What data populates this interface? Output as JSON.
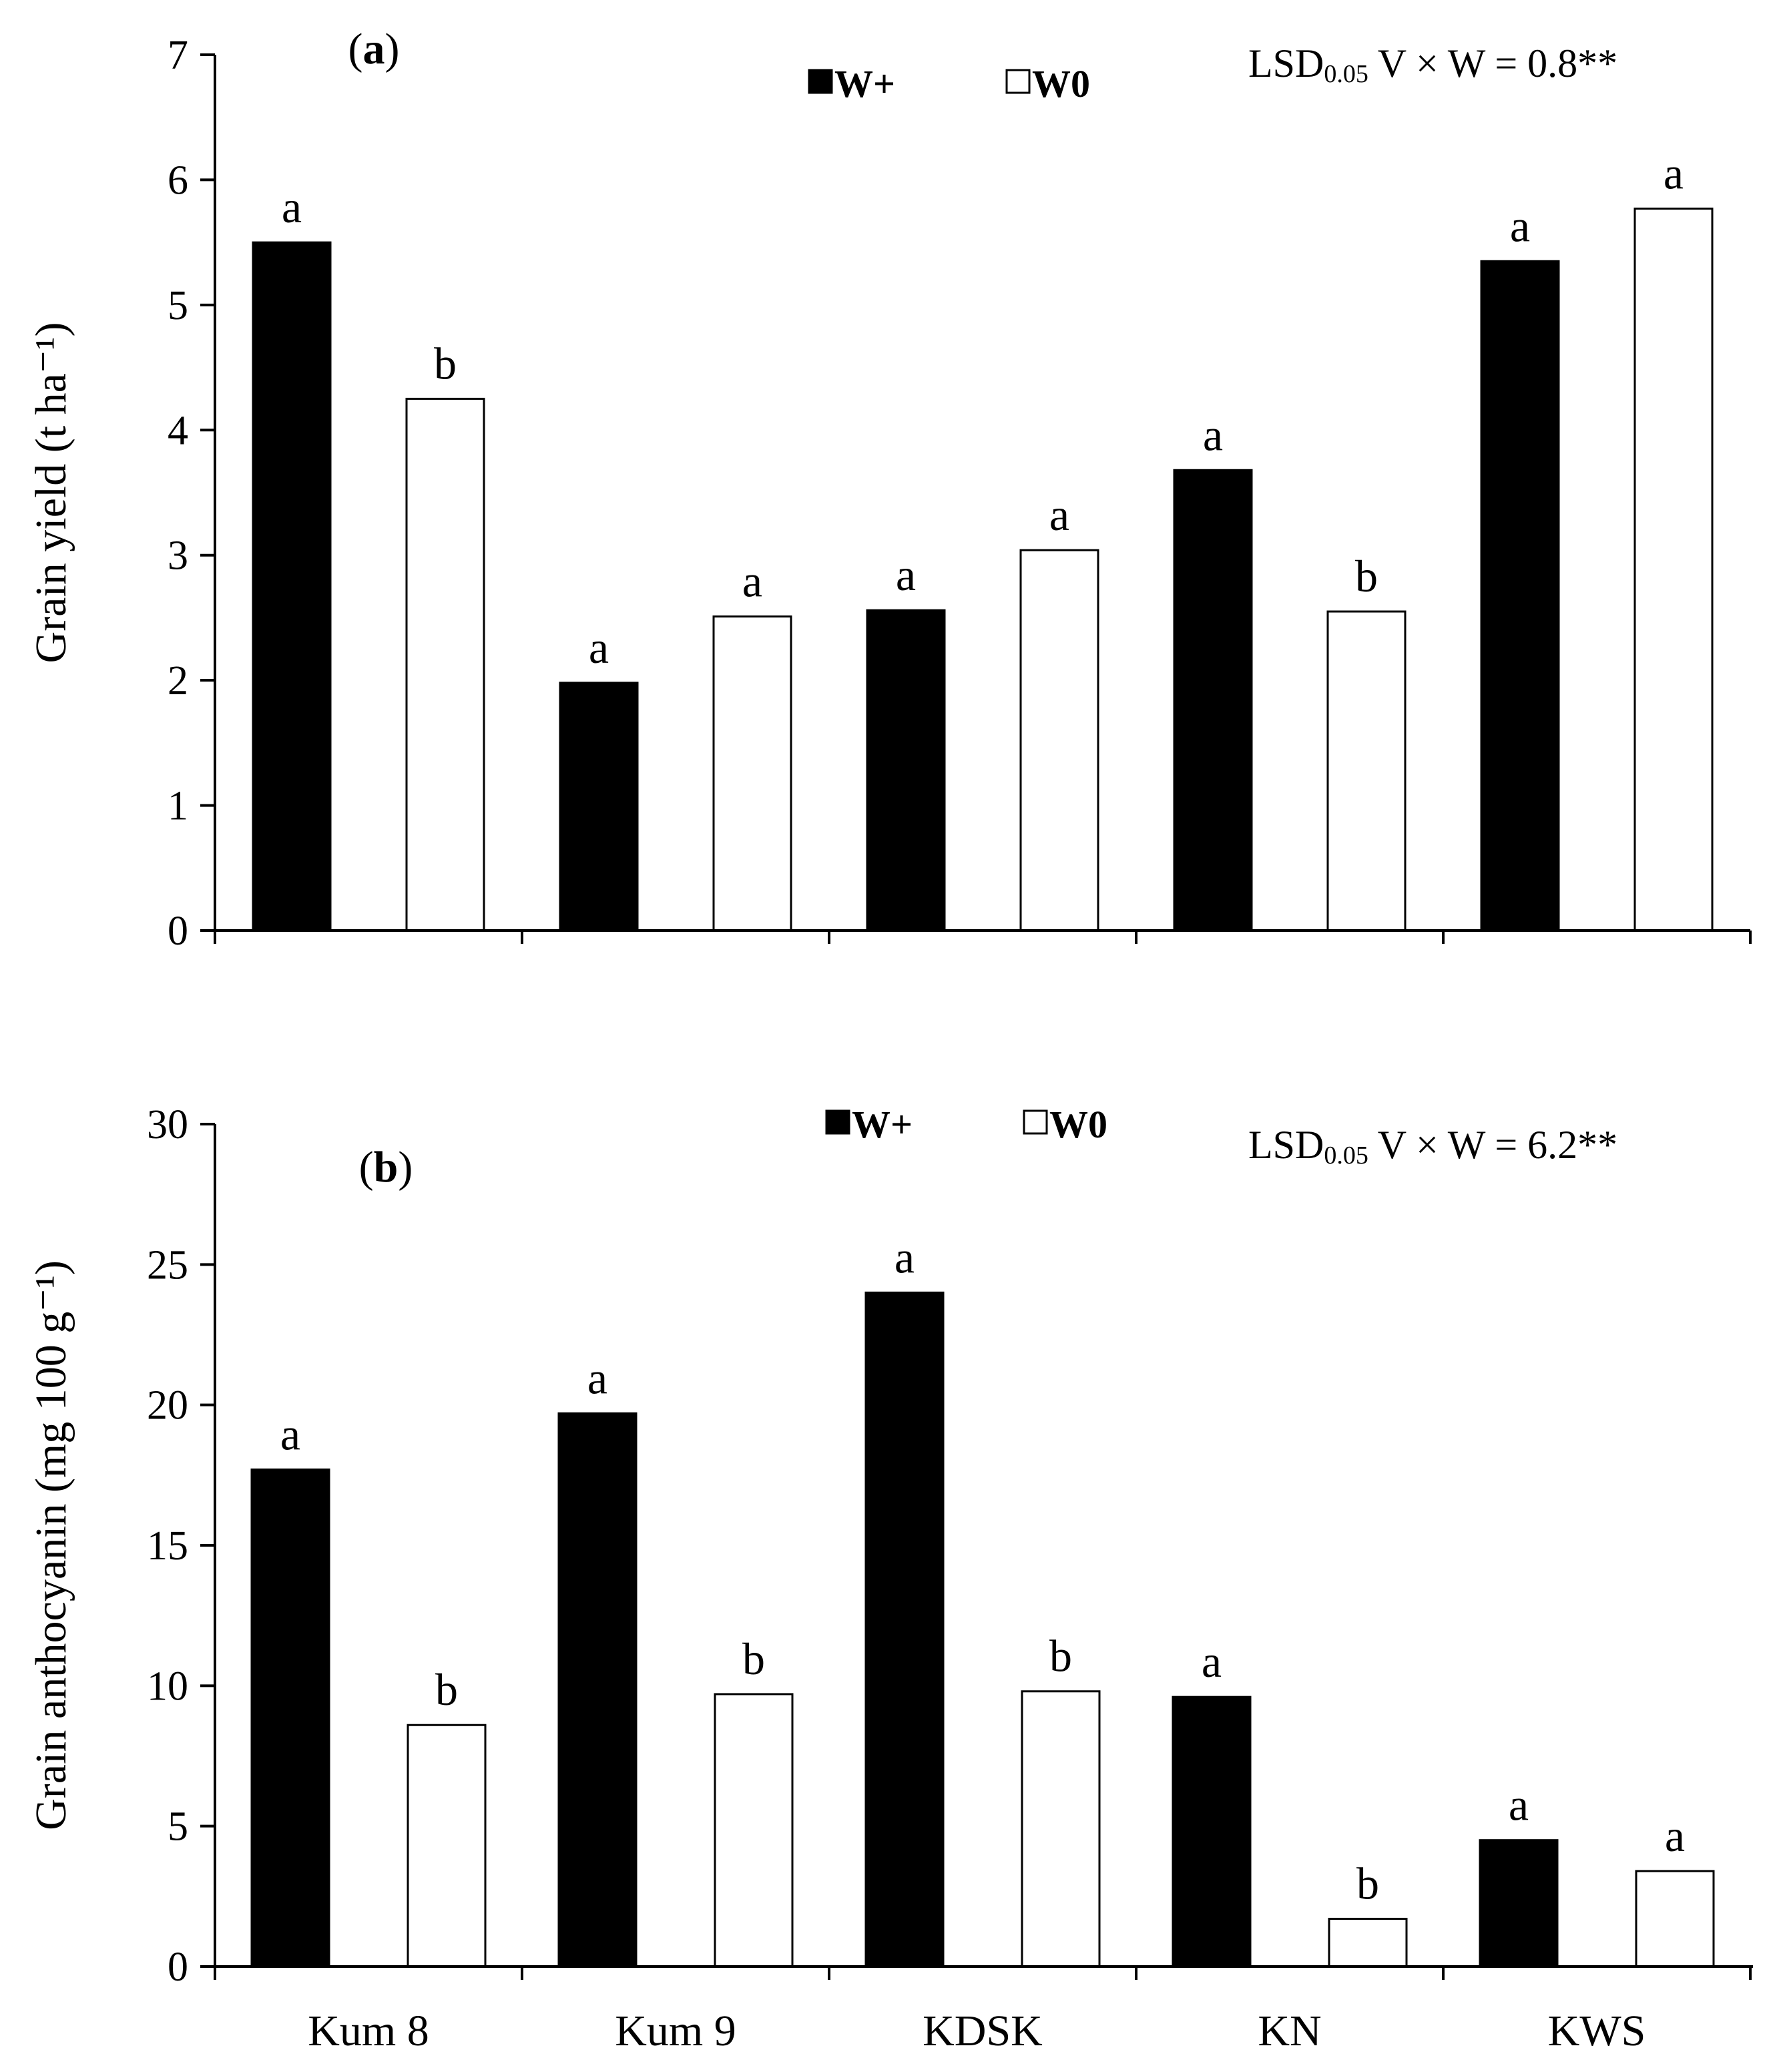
{
  "chart_data": [
    {
      "type": "bar",
      "panel_label": "a",
      "categories": [
        "Kum 8",
        "Kum 9",
        "KDSK",
        "KN",
        "KWS"
      ],
      "series": [
        {
          "name": "W+",
          "values": [
            5.5,
            1.98,
            2.56,
            3.68,
            5.35
          ],
          "letters": [
            "a",
            "a",
            "a",
            "a",
            "a"
          ]
        },
        {
          "name": "W0",
          "values": [
            4.25,
            2.51,
            3.04,
            2.55,
            5.77
          ],
          "letters": [
            "b",
            "a",
            "a",
            "b",
            "a"
          ]
        }
      ],
      "ylabel": "Grain yield (t ha⁻¹)",
      "ylim": [
        0,
        7
      ],
      "yticks": [
        0,
        1,
        2,
        3,
        4,
        5,
        6,
        7
      ],
      "annotation": {
        "prefix": "LSD",
        "subscript": "0.05",
        "suffix": " V × W = 0.8**"
      },
      "legend_position": "top-center",
      "grid": false
    },
    {
      "type": "bar",
      "panel_label": "b",
      "categories": [
        "Kum 8",
        "Kum 9",
        "KDSK",
        "KN",
        "KWS"
      ],
      "series": [
        {
          "name": "W+",
          "values": [
            17.7,
            19.7,
            24.0,
            9.6,
            4.5
          ],
          "letters": [
            "a",
            "a",
            "a",
            "a",
            "a"
          ]
        },
        {
          "name": "W0",
          "values": [
            8.6,
            9.7,
            9.8,
            1.7,
            3.4
          ],
          "letters": [
            "b",
            "b",
            "b",
            "b",
            "a"
          ]
        }
      ],
      "ylabel": "Grain anthocyanin (mg 100 g⁻¹)",
      "ylim": [
        0,
        30
      ],
      "yticks": [
        0,
        5,
        10,
        15,
        20,
        25,
        30
      ],
      "annotation": {
        "prefix": "LSD",
        "subscript": "0.05",
        "suffix": " V × W = 6.2**"
      },
      "legend_position": "top-center",
      "grid": false
    }
  ],
  "colors": {
    "w_plus": "#000000",
    "w0": "#ffffff",
    "axis": "#000000"
  }
}
